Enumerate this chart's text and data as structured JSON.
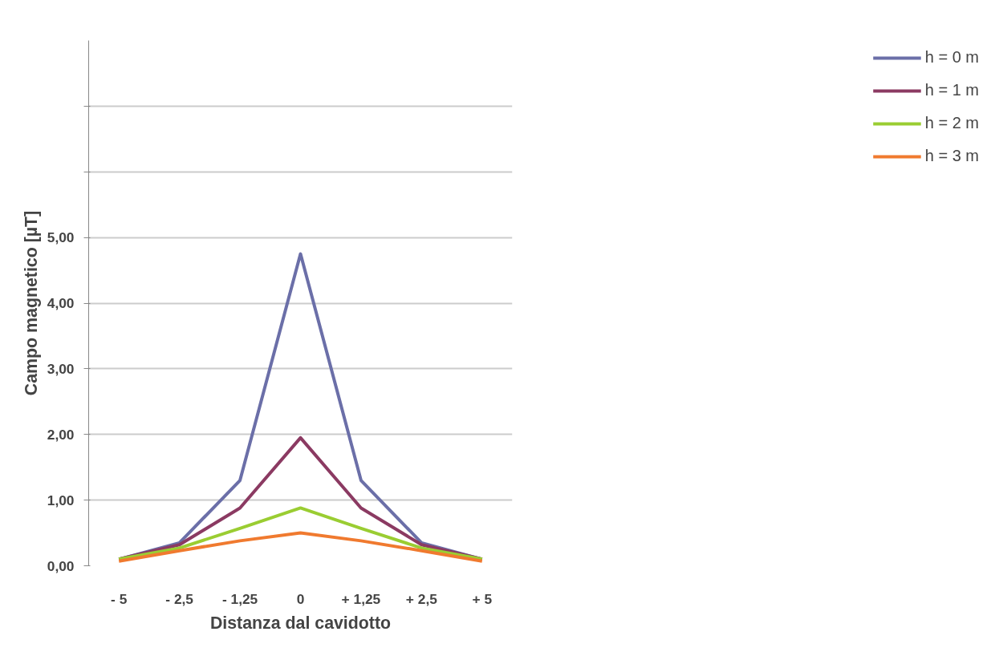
{
  "chart_data": {
    "type": "line",
    "xlabel": "Distanza dal cavidotto",
    "ylabel": "Campo magnetico [µT]",
    "categories": [
      "- 5",
      "- 2,5",
      "- 1,25",
      "0",
      "+ 1,25",
      "+ 2,5",
      "+ 5"
    ],
    "series": [
      {
        "name": "h = 0 m",
        "color": "#6b6fa8",
        "values": [
          0.1,
          0.35,
          1.3,
          4.75,
          1.3,
          0.35,
          0.1
        ]
      },
      {
        "name": "h = 1 m",
        "color": "#8b3a62",
        "values": [
          0.1,
          0.32,
          0.88,
          1.95,
          0.88,
          0.32,
          0.1
        ]
      },
      {
        "name": "h = 2 m",
        "color": "#9acd32",
        "values": [
          0.1,
          0.27,
          0.57,
          0.88,
          0.57,
          0.27,
          0.1
        ]
      },
      {
        "name": "h = 3 m",
        "color": "#f07a2f",
        "values": [
          0.07,
          0.23,
          0.38,
          0.5,
          0.38,
          0.23,
          0.07
        ]
      }
    ],
    "ylim": [
      0,
      8
    ],
    "yticks": [
      {
        "value": 0,
        "label": "0,00"
      },
      {
        "value": 1,
        "label": "1,00"
      },
      {
        "value": 2,
        "label": "2,00"
      },
      {
        "value": 3,
        "label": "3,00"
      },
      {
        "value": 4,
        "label": "4,00"
      },
      {
        "value": 5,
        "label": "5,00"
      },
      {
        "value": 6,
        "label": null
      },
      {
        "value": 7,
        "label": null
      }
    ],
    "grid": "y",
    "legend": "right",
    "marker": "none",
    "line_style": "solid"
  }
}
